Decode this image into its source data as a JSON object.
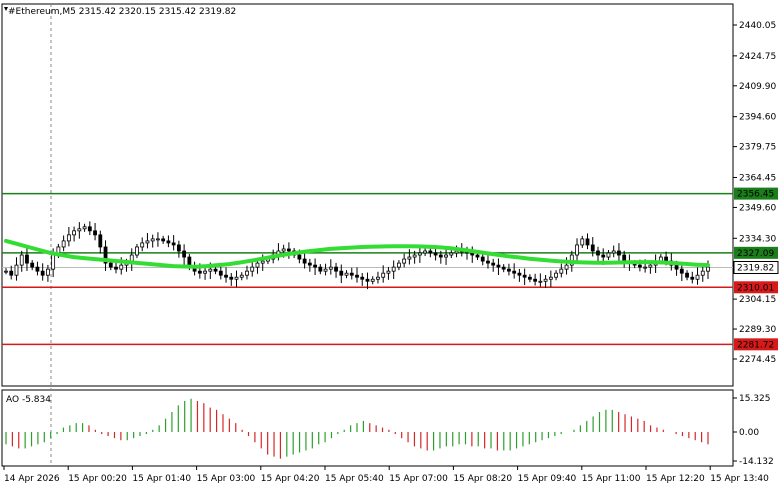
{
  "window": {
    "symbol_title": "#Ethereum,M5",
    "ohlc": "2315.42 2320.15 2315.42 2319.82"
  },
  "price_axis": {
    "ticks": [
      "2440.05",
      "2424.75",
      "2409.90",
      "2394.60",
      "2379.75",
      "2364.45",
      "2349.60",
      "2334.30",
      "2319.45",
      "2304.15",
      "2289.30",
      "2274.45"
    ],
    "tick_values": [
      2440.05,
      2424.75,
      2409.9,
      2394.6,
      2379.75,
      2364.45,
      2349.6,
      2334.3,
      2319.45,
      2304.15,
      2289.3,
      2274.45
    ]
  },
  "levels": [
    {
      "value": 2356.45,
      "label": "2356.45",
      "color": "#1a7f1a"
    },
    {
      "value": 2327.09,
      "label": "2327.09",
      "color": "#1a7f1a"
    },
    {
      "value": 2310.01,
      "label": "2310.01",
      "color": "#d61a1a"
    },
    {
      "value": 2281.72,
      "label": "2281.72",
      "color": "#d61a1a"
    }
  ],
  "current_price": {
    "value": 2319.82,
    "label": "2319.82"
  },
  "ao": {
    "label": "AO -5.834",
    "ticks": [
      "15.325",
      "0.00",
      "-14.132"
    ],
    "tick_values": [
      15.325,
      0,
      -14.132
    ]
  },
  "time_axis": [
    "14 Apr 2026",
    "15 Apr 00:20",
    "15 Apr 01:40",
    "15 Apr 03:00",
    "15 Apr 04:20",
    "15 Apr 05:40",
    "15 Apr 07:00",
    "15 Apr 08:20",
    "15 Apr 09:40",
    "15 Apr 11:00",
    "15 Apr 12:20",
    "15 Apr 13:40"
  ],
  "colors": {
    "ma_line": "#33dd33",
    "candle": "#000000",
    "ao_up": "#2ca02c",
    "ao_down": "#d62728",
    "grid": "#c8c8c8"
  },
  "chart_data": {
    "type": "candlestick",
    "price_path": [
      2318,
      2316,
      2321,
      2326,
      2322,
      2320,
      2318,
      2316,
      2319,
      2326,
      2330,
      2333,
      2336,
      2338,
      2339,
      2340,
      2338,
      2336,
      2330,
      2322,
      2320,
      2319,
      2321,
      2322,
      2326,
      2330,
      2332,
      2333,
      2334,
      2334,
      2333,
      2332,
      2331,
      2328,
      2325,
      2320,
      2318,
      2317,
      2318,
      2319,
      2318,
      2316,
      2315,
      2314,
      2315,
      2316,
      2318,
      2320,
      2322,
      2323,
      2324,
      2326,
      2328,
      2329,
      2328,
      2326,
      2324,
      2322,
      2321,
      2320,
      2318,
      2319,
      2320,
      2318,
      2316,
      2317,
      2316,
      2315,
      2314,
      2313,
      2314,
      2315,
      2317,
      2318,
      2320,
      2322,
      2324,
      2325,
      2326,
      2327,
      2328,
      2327,
      2326,
      2325,
      2326,
      2327,
      2328,
      2328,
      2327,
      2326,
      2325,
      2323,
      2322,
      2321,
      2320,
      2319,
      2318,
      2317,
      2316,
      2315,
      2314,
      2313,
      2313,
      2314,
      2315,
      2317,
      2319,
      2321,
      2326,
      2331,
      2334,
      2331,
      2328,
      2326,
      2325,
      2327,
      2328,
      2326,
      2323,
      2322,
      2321,
      2320,
      2320,
      2321,
      2323,
      2325,
      2323,
      2321,
      2319,
      2317,
      2315,
      2314,
      2316,
      2318,
      2320
    ],
    "ma_path": [
      2333,
      2331.5,
      2330,
      2328.5,
      2327,
      2326,
      2325,
      2324.5,
      2324,
      2323.5,
      2323,
      2322.5,
      2322,
      2321.5,
      2321,
      2320.5,
      2320.3,
      2320.2,
      2320.5,
      2321,
      2321.5,
      2322.3,
      2323.2,
      2324.2,
      2325.2,
      2326.2,
      2327,
      2327.8,
      2328.4,
      2329,
      2329.4,
      2329.7,
      2330,
      2330.2,
      2330.3,
      2330.4,
      2330.4,
      2330.3,
      2330.1,
      2329.8,
      2329.3,
      2328.6,
      2327.8,
      2327,
      2326.2,
      2325.4,
      2324.8,
      2324.2,
      2323.7,
      2323.2,
      2322.8,
      2322.5,
      2322.3,
      2322.2,
      2322.2,
      2322.3,
      2322.4,
      2322.5,
      2322.5,
      2322.3,
      2322,
      2321.6,
      2321.2,
      2321
    ],
    "ao_values": [
      -6,
      -7,
      -8,
      -8,
      -7,
      -6,
      -5,
      -3,
      -1,
      2,
      3,
      4,
      4,
      3,
      1,
      -1,
      -2,
      -3,
      -4,
      -4,
      -3,
      -2,
      -1,
      1,
      3,
      6,
      9,
      12,
      14,
      15,
      14,
      13,
      11,
      10,
      8,
      6,
      4,
      1,
      -2,
      -5,
      -8,
      -11,
      -12,
      -13,
      -12,
      -11,
      -10,
      -9,
      -8,
      -6,
      -5,
      -3,
      -1,
      1,
      3,
      4,
      5,
      4,
      3,
      2,
      1,
      -1,
      -3,
      -5,
      -7,
      -8,
      -9,
      -9,
      -8,
      -7,
      -7,
      -6,
      -6,
      -7,
      -7,
      -8,
      -8,
      -9,
      -9,
      -9,
      -8,
      -7,
      -6,
      -5,
      -4,
      -3,
      -2,
      -1,
      0,
      1,
      3,
      5,
      7,
      9,
      10,
      10,
      9,
      8,
      7,
      6,
      5,
      3,
      2,
      1,
      0,
      -1,
      -2,
      -3,
      -4,
      -5,
      -6
    ],
    "price_range": [
      2272,
      2446
    ]
  }
}
